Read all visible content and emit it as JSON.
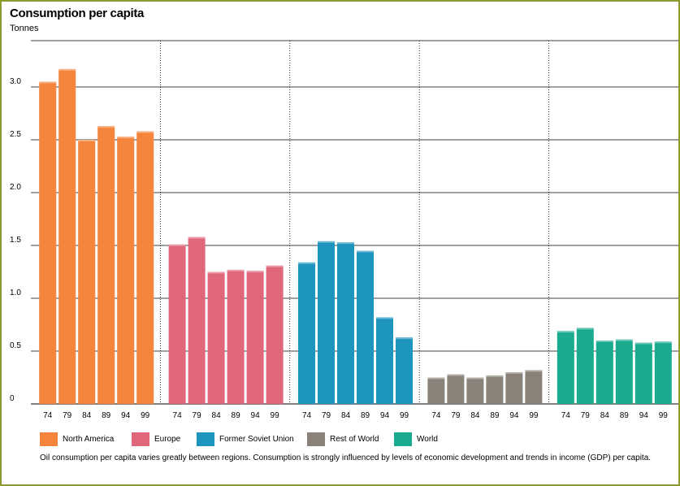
{
  "title": "Consumption per capita",
  "unit_label": "Tonnes",
  "caption": "Oil consumption per capita varies greatly between regions. Consumption is strongly influenced by levels of economic development and trends in income (GDP) per capita.",
  "legend": [
    {
      "label": "North America",
      "color": "#f5843c"
    },
    {
      "label": "Europe",
      "color": "#e0667c"
    },
    {
      "label": "Former Soviet Union",
      "color": "#1e95be"
    },
    {
      "label": "Rest of World",
      "color": "#8a8178"
    },
    {
      "label": "World",
      "color": "#1aaa8e"
    }
  ],
  "chart_data": {
    "type": "bar",
    "title": "Consumption per capita",
    "ylabel": "Tonnes",
    "ylim": [
      0,
      3.5
    ],
    "yticks": [
      "0",
      "0.5",
      "1.0",
      "1.5",
      "2.0",
      "2.5",
      "3.0"
    ],
    "categories": [
      "74",
      "79",
      "84",
      "89",
      "94",
      "99"
    ],
    "grid": true,
    "series": [
      {
        "name": "North America",
        "color": "#f5843c",
        "values": [
          3.05,
          3.17,
          2.5,
          2.63,
          2.53,
          2.58
        ]
      },
      {
        "name": "Europe",
        "color": "#e0667c",
        "values": [
          1.51,
          1.58,
          1.25,
          1.27,
          1.26,
          1.31
        ]
      },
      {
        "name": "Former Soviet Union",
        "color": "#1e95be",
        "values": [
          1.34,
          1.54,
          1.53,
          1.45,
          0.82,
          0.63
        ]
      },
      {
        "name": "Rest of World",
        "color": "#8a8178",
        "values": [
          0.25,
          0.28,
          0.25,
          0.27,
          0.3,
          0.32
        ]
      },
      {
        "name": "World",
        "color": "#1aaa8e",
        "values": [
          0.69,
          0.72,
          0.6,
          0.61,
          0.58,
          0.59
        ]
      }
    ]
  }
}
